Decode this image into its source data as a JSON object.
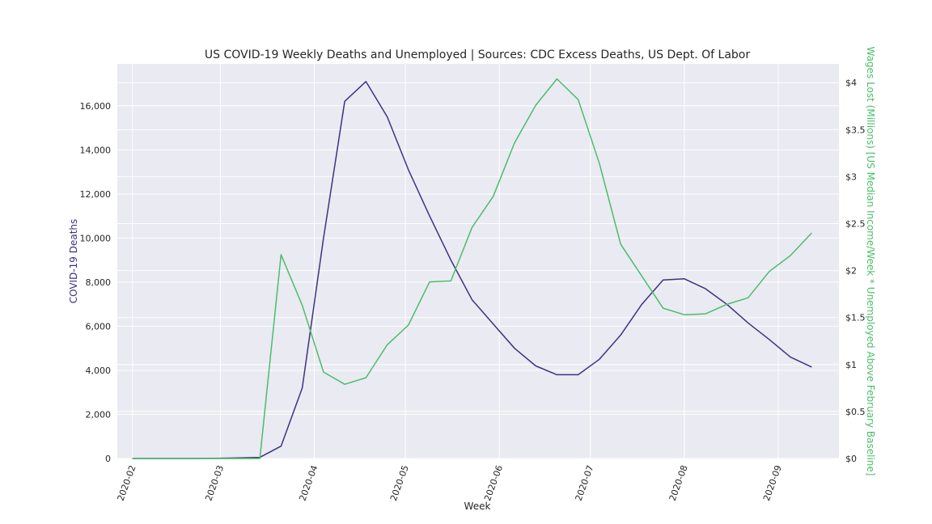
{
  "chart_data": {
    "type": "line",
    "title": "US COVID-19 Weekly Deaths and Unemployed | Sources: CDC Excess Deaths, US Dept. Of Labor",
    "xlabel": "Week",
    "ylabel_left": "COVID-19 Deaths",
    "ylabel_right": "Wages Lost (Millions) [US Median Income/Week * Unemployed Above February Baseline]",
    "x_ticks": [
      "2020-02",
      "2020-03",
      "2020-04",
      "2020-05",
      "2020-06",
      "2020-07",
      "2020-08",
      "2020-09"
    ],
    "y_left_ticks": [
      "0",
      "2,000",
      "4,000",
      "6,000",
      "8,000",
      "10,000",
      "12,000",
      "14,000",
      "16,000"
    ],
    "y_right_ticks": [
      "$0",
      "$0.5",
      "$1",
      "$1.5",
      "$2",
      "$2.5",
      "$3",
      "$3.5",
      "$4"
    ],
    "ylim_left": [
      0,
      17900
    ],
    "ylim_right": [
      0,
      4.2
    ],
    "xlim": [
      "2020-01-27",
      "2020-09-21"
    ],
    "grid": true,
    "colors": {
      "background": "#eaeaf2",
      "grid": "#ffffff",
      "deaths": "#3d3280",
      "wages": "#4bbd6a",
      "text": "#262626"
    },
    "series": [
      {
        "axis": "left",
        "x": [
          "2020-02-01",
          "2020-02-08",
          "2020-02-15",
          "2020-02-22",
          "2020-02-29",
          "2020-03-07",
          "2020-03-14",
          "2020-03-21",
          "2020-03-28",
          "2020-04-04",
          "2020-04-11",
          "2020-04-18",
          "2020-04-25",
          "2020-05-02",
          "2020-05-09",
          "2020-05-16",
          "2020-05-23",
          "2020-05-30",
          "2020-06-06",
          "2020-06-13",
          "2020-06-20",
          "2020-06-27",
          "2020-07-04",
          "2020-07-11",
          "2020-07-18",
          "2020-07-25",
          "2020-08-01",
          "2020-08-08",
          "2020-08-15",
          "2020-08-22",
          "2020-08-29",
          "2020-09-05",
          "2020-09-12"
        ],
        "values": [
          0,
          0,
          0,
          0,
          10,
          30,
          50,
          560,
          3200,
          10000,
          16200,
          17100,
          15500,
          13100,
          11000,
          9000,
          7200,
          6100,
          5000,
          4200,
          3800,
          3800,
          4500,
          5600,
          7000,
          8100,
          8150,
          7700,
          7000,
          6150,
          5400,
          4600,
          4150
        ]
      },
      {
        "axis": "right",
        "x": [
          "2020-02-01",
          "2020-02-08",
          "2020-02-15",
          "2020-02-22",
          "2020-02-29",
          "2020-03-07",
          "2020-03-14",
          "2020-03-21",
          "2020-03-28",
          "2020-04-04",
          "2020-04-11",
          "2020-04-18",
          "2020-04-25",
          "2020-05-02",
          "2020-05-09",
          "2020-05-16",
          "2020-05-23",
          "2020-05-30",
          "2020-06-06",
          "2020-06-13",
          "2020-06-20",
          "2020-06-27",
          "2020-07-04",
          "2020-07-11",
          "2020-07-18",
          "2020-07-25",
          "2020-08-01",
          "2020-08-08",
          "2020-08-15",
          "2020-08-22",
          "2020-08-29",
          "2020-09-05",
          "2020-09-12"
        ],
        "values": [
          0,
          0,
          0,
          0,
          0,
          0,
          0,
          2.17,
          1.63,
          0.92,
          0.79,
          0.86,
          1.21,
          1.42,
          1.88,
          1.89,
          2.46,
          2.79,
          3.36,
          3.76,
          4.04,
          3.82,
          3.14,
          2.28,
          1.94,
          1.6,
          1.53,
          1.54,
          1.64,
          1.71,
          1.99,
          2.16,
          2.4
        ]
      }
    ]
  }
}
